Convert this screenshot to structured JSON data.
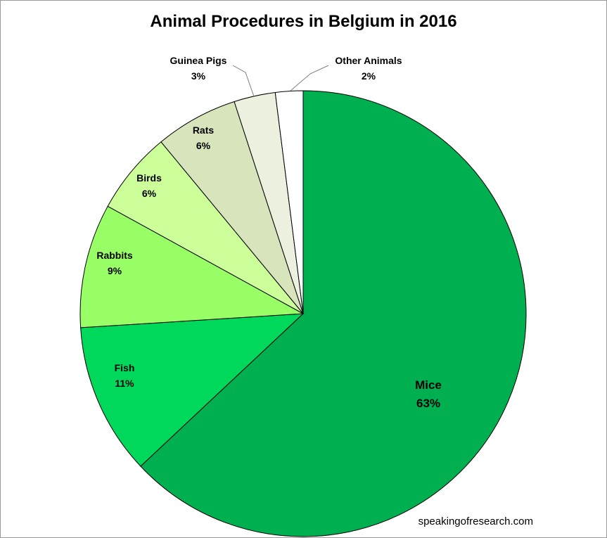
{
  "chart_data": {
    "type": "pie",
    "title": "Animal Procedures in Belgium in 2016",
    "start_angle_deg": 0,
    "direction": "clockwise",
    "slices": [
      {
        "name": "Mice",
        "value": 63,
        "label": "63%",
        "color": "#00b050"
      },
      {
        "name": "Fish",
        "value": 11,
        "label": "11%",
        "color": "#00d85c"
      },
      {
        "name": "Rabbits",
        "value": 9,
        "label": "9%",
        "color": "#99ff66"
      },
      {
        "name": "Birds",
        "value": 6,
        "label": "6%",
        "color": "#ccff99"
      },
      {
        "name": "Rats",
        "value": 6,
        "label": "6%",
        "color": "#d8e4bc"
      },
      {
        "name": "Guinea Pigs",
        "value": 3,
        "label": "3%",
        "color": "#ebf1de"
      },
      {
        "name": "Other Animals",
        "value": 2,
        "label": "2%",
        "color": "#ffffff"
      }
    ]
  },
  "source": "speakingofresearch.com"
}
